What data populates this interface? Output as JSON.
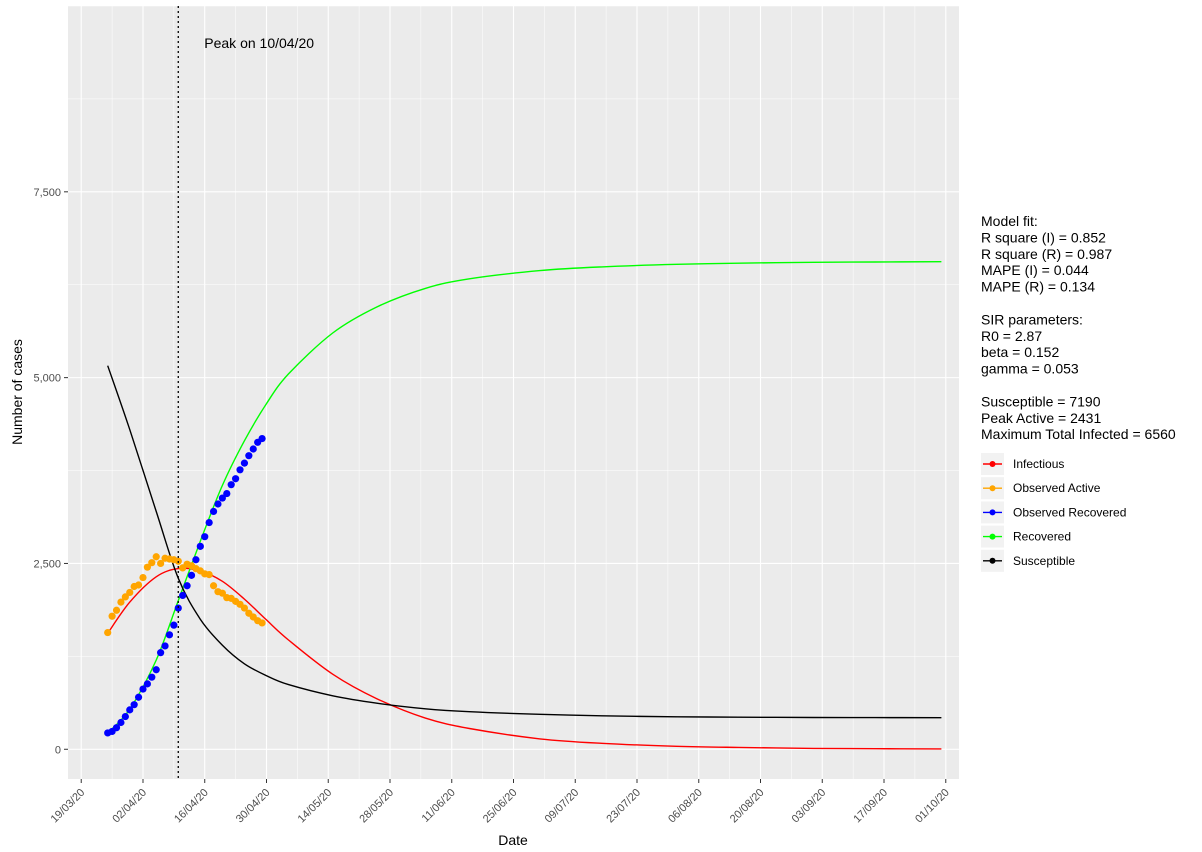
{
  "chart_data": {
    "type": "line",
    "xlabel": "Date",
    "ylabel": "Number of cases",
    "x_ticks": [
      "19/03/20",
      "02/04/20",
      "16/04/20",
      "30/04/20",
      "14/05/20",
      "28/05/20",
      "11/06/20",
      "25/06/20",
      "09/07/20",
      "23/07/20",
      "06/08/20",
      "20/08/20",
      "03/09/20",
      "17/09/20",
      "01/10/20"
    ],
    "x_range": [
      "16/03/20",
      "04/10/20"
    ],
    "ylim": [
      -400,
      10000
    ],
    "y_ticks": [
      0,
      2500,
      5000,
      7500
    ],
    "y_tick_labels": [
      "0",
      "2,500",
      "5,000",
      "7,500"
    ],
    "grid": true,
    "peak_line": {
      "date": "10/04/20",
      "label": "Peak on 10/04/20"
    },
    "model_curves_dates": [
      "25/03/20",
      "30/03/20",
      "05/04/20",
      "10/04/20",
      "15/04/20",
      "20/04/20",
      "25/04/20",
      "30/04/20",
      "05/05/20",
      "15/05/20",
      "25/05/20",
      "05/06/20",
      "15/06/20",
      "01/07/20",
      "15/07/20",
      "01/08/20",
      "15/08/20",
      "01/09/20",
      "15/09/20",
      "30/09/20"
    ],
    "series": [
      {
        "name": "Infectious",
        "color": "#ff0000",
        "kind": "line",
        "values": [
          1560,
          1980,
          2320,
          2431,
          2400,
          2260,
          2020,
          1740,
          1470,
          1010,
          680,
          420,
          280,
          140,
          80,
          40,
          25,
          12,
          8,
          5
        ]
      },
      {
        "name": "Recovered",
        "color": "#00ff00",
        "kind": "line",
        "values": [
          220,
          540,
          1200,
          2000,
          2800,
          3550,
          4150,
          4650,
          5050,
          5600,
          5950,
          6200,
          6330,
          6440,
          6490,
          6525,
          6540,
          6552,
          6556,
          6560
        ]
      },
      {
        "name": "Susceptible",
        "color": "#000000",
        "kind": "line",
        "values": [
          5160,
          4300,
          3200,
          2300,
          1750,
          1400,
          1150,
          990,
          870,
          720,
          620,
          545,
          505,
          470,
          450,
          437,
          432,
          428,
          426,
          425
        ]
      },
      {
        "name": "Observed Active",
        "color": "#ffa500",
        "kind": "points",
        "dates": [
          "25/03/20",
          "26/03/20",
          "27/03/20",
          "28/03/20",
          "29/03/20",
          "30/03/20",
          "31/03/20",
          "01/04/20",
          "02/04/20",
          "03/04/20",
          "04/04/20",
          "05/04/20",
          "06/04/20",
          "07/04/20",
          "08/04/20",
          "09/04/20",
          "10/04/20",
          "11/04/20",
          "12/04/20",
          "13/04/20",
          "14/04/20",
          "15/04/20",
          "16/04/20",
          "17/04/20",
          "18/04/20",
          "19/04/20",
          "20/04/20",
          "21/04/20",
          "22/04/20",
          "23/04/20",
          "24/04/20",
          "25/04/20",
          "26/04/20",
          "27/04/20",
          "28/04/20",
          "29/04/20"
        ],
        "values": [
          1570,
          1790,
          1870,
          1980,
          2050,
          2110,
          2190,
          2210,
          2310,
          2450,
          2510,
          2590,
          2500,
          2570,
          2560,
          2550,
          2530,
          2440,
          2490,
          2470,
          2430,
          2400,
          2360,
          2350,
          2200,
          2120,
          2100,
          2040,
          2030,
          1990,
          1950,
          1900,
          1830,
          1780,
          1730,
          1700
        ]
      },
      {
        "name": "Observed Recovered",
        "color": "#0000ff",
        "kind": "points",
        "dates": [
          "25/03/20",
          "26/03/20",
          "27/03/20",
          "28/03/20",
          "29/03/20",
          "30/03/20",
          "31/03/20",
          "01/04/20",
          "02/04/20",
          "03/04/20",
          "04/04/20",
          "05/04/20",
          "06/04/20",
          "07/04/20",
          "08/04/20",
          "09/04/20",
          "10/04/20",
          "11/04/20",
          "12/04/20",
          "13/04/20",
          "14/04/20",
          "15/04/20",
          "16/04/20",
          "17/04/20",
          "18/04/20",
          "19/04/20",
          "20/04/20",
          "21/04/20",
          "22/04/20",
          "23/04/20",
          "24/04/20",
          "25/04/20",
          "26/04/20",
          "27/04/20",
          "28/04/20",
          "29/04/20"
        ],
        "values": [
          220,
          240,
          290,
          360,
          440,
          530,
          600,
          700,
          810,
          880,
          970,
          1070,
          1300,
          1390,
          1540,
          1670,
          1900,
          2070,
          2200,
          2340,
          2550,
          2730,
          2860,
          3050,
          3200,
          3300,
          3380,
          3440,
          3560,
          3640,
          3760,
          3850,
          3950,
          4040,
          4130,
          4180
        ]
      }
    ],
    "legend_placement": "right"
  },
  "stats": {
    "lines": [
      "Model fit:",
      "R square (I) = 0.852",
      "R square (R) = 0.987",
      "MAPE (I) = 0.044",
      "MAPE (R) = 0.134",
      "",
      "SIR parameters:",
      "R0 = 2.87",
      "beta = 0.152",
      "gamma = 0.053",
      "",
      "Susceptible = 7190",
      "Peak Active = 2431",
      "Maximum Total Infected = 6560"
    ]
  },
  "legend": [
    {
      "label": "Infectious",
      "color": "#ff0000"
    },
    {
      "label": "Observed Active",
      "color": "#ffa500"
    },
    {
      "label": "Observed Recovered",
      "color": "#0000ff"
    },
    {
      "label": "Recovered",
      "color": "#00ff00"
    },
    {
      "label": "Susceptible",
      "color": "#000000"
    }
  ]
}
